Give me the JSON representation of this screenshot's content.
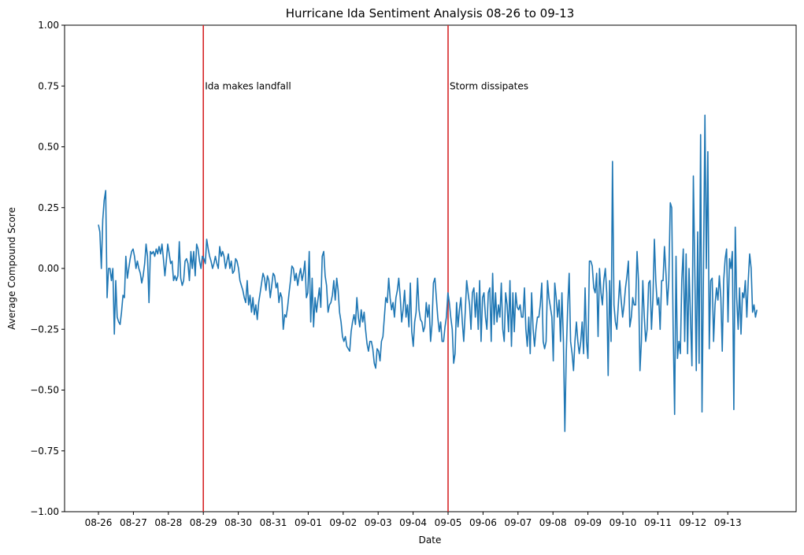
{
  "chart_data": {
    "type": "line",
    "title": "Hurricane Ida Sentiment Analysis 08-26 to 09-13",
    "xlabel": "Date",
    "ylabel": "Average Compound Score",
    "ylim": [
      -1.0,
      1.0
    ],
    "x_start": "2021-08-26",
    "x_end": "2021-09-13T20:00",
    "xticks": [
      "08-26",
      "08-27",
      "08-28",
      "08-29",
      "08-30",
      "08-31",
      "09-01",
      "09-02",
      "09-03",
      "09-04",
      "09-05",
      "09-06",
      "09-07",
      "09-08",
      "09-09",
      "09-10",
      "09-11",
      "09-12",
      "09-13"
    ],
    "yticks": [
      "1.00",
      "0.75",
      "0.50",
      "0.25",
      "0.00",
      "−0.25",
      "−0.50",
      "−0.75",
      "−1.00"
    ],
    "ytick_values": [
      1.0,
      0.75,
      0.5,
      0.25,
      0.0,
      -0.25,
      -0.5,
      -0.75,
      -1.0
    ],
    "grid": false,
    "line_color": "#1f77b4",
    "series": [
      {
        "y": [
          0.18,
          0.15,
          0.0,
          0.2,
          0.28,
          0.32,
          -0.12,
          0.0,
          0.0,
          -0.05,
          0.0,
          -0.27,
          -0.05,
          -0.2,
          -0.22,
          -0.23,
          -0.18,
          -0.11,
          -0.12,
          0.05,
          -0.04,
          0.0,
          0.04,
          0.07,
          0.08,
          0.05,
          0.0,
          0.03,
          0.0,
          -0.02,
          -0.06,
          -0.03,
          0.02,
          0.1,
          0.05,
          -0.14,
          0.07,
          0.06,
          0.07,
          0.05,
          0.08,
          0.06,
          0.09,
          0.06,
          0.1,
          0.04,
          -0.03,
          0.03,
          0.1,
          0.06,
          0.02,
          0.03,
          -0.05,
          -0.03,
          -0.05,
          -0.03,
          0.11,
          -0.04,
          -0.07,
          -0.05,
          0.03,
          0.04,
          0.02,
          -0.05,
          0.07,
          0.0,
          0.07,
          -0.03,
          0.1,
          0.08,
          0.03,
          0.0,
          0.05,
          0.04,
          0.02,
          0.12,
          0.08,
          0.05,
          0.03,
          0.0,
          0.02,
          0.05,
          0.02,
          0.0,
          0.09,
          0.05,
          0.07,
          0.05,
          0.0,
          0.03,
          0.06,
          0.0,
          0.03,
          -0.02,
          -0.01,
          0.04,
          0.03,
          0.0,
          -0.05,
          -0.07,
          -0.09,
          -0.12,
          -0.14,
          -0.05,
          -0.15,
          -0.11,
          -0.18,
          -0.12,
          -0.19,
          -0.15,
          -0.21,
          -0.14,
          -0.1,
          -0.06,
          -0.02,
          -0.04,
          -0.09,
          -0.03,
          -0.05,
          -0.12,
          -0.07,
          -0.02,
          -0.03,
          -0.08,
          -0.06,
          -0.14,
          -0.1,
          -0.12,
          -0.25,
          -0.19,
          -0.2,
          -0.16,
          -0.1,
          -0.05,
          0.01,
          0.0,
          -0.05,
          -0.02,
          -0.07,
          -0.03,
          0.0,
          -0.05,
          -0.02,
          0.03,
          -0.12,
          -0.1,
          0.07,
          -0.22,
          -0.04,
          -0.24,
          -0.12,
          -0.18,
          -0.13,
          -0.08,
          -0.16,
          0.05,
          0.07,
          -0.03,
          -0.07,
          -0.18,
          -0.15,
          -0.14,
          -0.11,
          -0.05,
          -0.13,
          -0.04,
          -0.09,
          -0.18,
          -0.22,
          -0.28,
          -0.3,
          -0.28,
          -0.32,
          -0.33,
          -0.34,
          -0.26,
          -0.22,
          -0.19,
          -0.23,
          -0.12,
          -0.2,
          -0.24,
          -0.17,
          -0.22,
          -0.18,
          -0.25,
          -0.31,
          -0.34,
          -0.3,
          -0.3,
          -0.33,
          -0.39,
          -0.41,
          -0.33,
          -0.34,
          -0.38,
          -0.3,
          -0.28,
          -0.2,
          -0.12,
          -0.14,
          -0.04,
          -0.12,
          -0.17,
          -0.14,
          -0.2,
          -0.12,
          -0.09,
          -0.04,
          -0.12,
          -0.22,
          -0.17,
          -0.09,
          -0.2,
          -0.15,
          -0.24,
          -0.06,
          -0.26,
          -0.32,
          -0.22,
          -0.18,
          -0.04,
          -0.17,
          -0.21,
          -0.22,
          -0.26,
          -0.24,
          -0.14,
          -0.2,
          -0.15,
          -0.3,
          -0.23,
          -0.06,
          -0.04,
          -0.12,
          -0.2,
          -0.26,
          -0.22,
          -0.3,
          -0.3,
          -0.24,
          -0.2,
          -0.1,
          -0.14,
          -0.2,
          -0.25,
          -0.39,
          -0.35,
          -0.14,
          -0.24,
          -0.17,
          -0.12,
          -0.22,
          -0.3,
          -0.18,
          -0.05,
          -0.1,
          -0.15,
          -0.25,
          -0.1,
          -0.08,
          -0.2,
          -0.1,
          -0.25,
          -0.05,
          -0.3,
          -0.12,
          -0.1,
          -0.2,
          -0.25,
          -0.1,
          -0.08,
          -0.3,
          -0.02,
          -0.23,
          -0.1,
          -0.22,
          -0.15,
          -0.2,
          -0.06,
          -0.25,
          -0.3,
          -0.1,
          -0.15,
          -0.26,
          -0.05,
          -0.32,
          -0.1,
          -0.26,
          -0.1,
          -0.16,
          -0.17,
          -0.15,
          -0.2,
          -0.2,
          -0.08,
          -0.25,
          -0.32,
          -0.2,
          -0.35,
          -0.1,
          -0.25,
          -0.32,
          -0.25,
          -0.2,
          -0.2,
          -0.15,
          -0.06,
          -0.3,
          -0.33,
          -0.3,
          -0.05,
          -0.12,
          -0.16,
          -0.2,
          -0.38,
          -0.06,
          -0.12,
          -0.2,
          -0.13,
          -0.3,
          -0.1,
          -0.3,
          -0.67,
          -0.35,
          -0.15,
          -0.02,
          -0.3,
          -0.35,
          -0.42,
          -0.3,
          -0.22,
          -0.3,
          -0.35,
          -0.3,
          -0.22,
          -0.35,
          -0.08,
          -0.3,
          -0.37,
          0.03,
          0.03,
          0.01,
          -0.08,
          -0.1,
          -0.02,
          -0.28,
          0.0,
          -0.1,
          -0.15,
          -0.05,
          0.0,
          -0.1,
          -0.44,
          -0.05,
          -0.3,
          0.44,
          -0.15,
          -0.22,
          -0.25,
          -0.15,
          -0.05,
          -0.13,
          -0.2,
          -0.15,
          -0.08,
          -0.03,
          0.03,
          -0.24,
          -0.2,
          -0.12,
          -0.15,
          -0.15,
          0.07,
          -0.05,
          -0.42,
          -0.3,
          -0.05,
          -0.2,
          -0.3,
          -0.25,
          -0.06,
          -0.05,
          -0.25,
          -0.12,
          0.12,
          -0.05,
          -0.15,
          -0.12,
          -0.25,
          -0.05,
          -0.05,
          0.09,
          -0.02,
          -0.15,
          -0.05,
          0.27,
          0.25,
          -0.24,
          -0.6,
          0.05,
          -0.37,
          -0.3,
          -0.35,
          -0.05,
          0.08,
          -0.3,
          0.06,
          -0.35,
          0.0,
          -0.2,
          -0.4,
          0.38,
          0.0,
          -0.42,
          0.15,
          -0.39,
          0.55,
          -0.59,
          0.0,
          0.63,
          0.0,
          0.48,
          -0.33,
          -0.05,
          -0.04,
          -0.3,
          -0.15,
          -0.08,
          -0.13,
          -0.03,
          -0.12,
          -0.34,
          -0.05,
          0.04,
          0.08,
          -0.22,
          0.04,
          0.0,
          0.07,
          -0.58,
          0.17,
          -0.12,
          -0.25,
          -0.08,
          -0.27,
          -0.1,
          -0.12,
          -0.05,
          -0.2,
          -0.05,
          0.06,
          0.0,
          -0.18,
          -0.15,
          -0.2,
          -0.17
        ]
      }
    ],
    "vlines": [
      {
        "x": "2021-08-29",
        "color": "#d62728",
        "label": "Ida makes landfall",
        "label_y": 0.75
      },
      {
        "x": "2021-09-05",
        "color": "#d62728",
        "label": "Storm dissipates",
        "label_y": 0.75
      }
    ]
  }
}
